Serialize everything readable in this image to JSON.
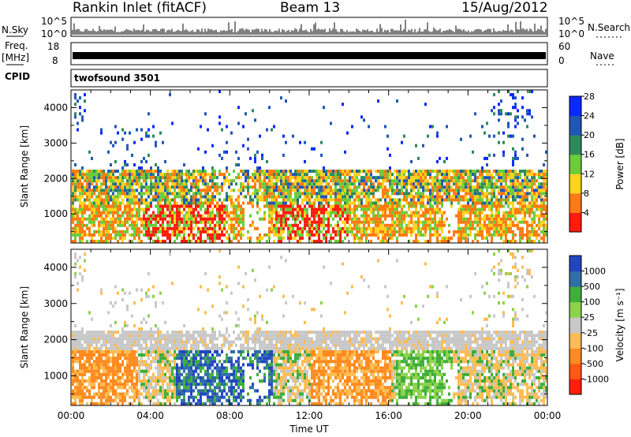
{
  "header": {
    "station": "Rankin Inlet (fitACF)",
    "beam": "Beam 13",
    "date": "15/Aug/2012"
  },
  "status_panels": {
    "nsky": {
      "label": "N.Sky",
      "ticks": [
        "10^5",
        "10^0"
      ],
      "right_label": "N.Search",
      "right_ticks": [
        "10^5",
        "10^0"
      ]
    },
    "freq": {
      "label_lines": [
        "Freq.",
        "[MHz]"
      ],
      "ticks": [
        "18",
        "8"
      ],
      "right_label": "Nave",
      "right_ticks": [
        "60",
        "0"
      ]
    },
    "cpid": {
      "label": "CPID",
      "value": "twofsound 3501"
    }
  },
  "chart_data": [
    {
      "type": "heatmap",
      "panel": "power",
      "ylabel": "Slant Range [km]",
      "ylim": [
        180,
        4500
      ],
      "yticks": [
        1000,
        2000,
        3000,
        4000
      ],
      "xlabel": "Time UT",
      "xticks": [
        "00:00",
        "04:00",
        "08:00",
        "12:00",
        "16:00",
        "20:00",
        "00:00"
      ],
      "colorbar": {
        "label": "Power [dB]",
        "ticks": [
          "4",
          "8",
          "12",
          "16",
          "20",
          "24",
          "28"
        ],
        "colors": [
          "#0a2aff",
          "#1f57b8",
          "#2e8a5c",
          "#6ccc3a",
          "#ffd21e",
          "#ff7a10",
          "#ff1c0c"
        ]
      }
    },
    {
      "type": "heatmap",
      "panel": "velocity",
      "ylabel": "Slant Range [km]",
      "ylim": [
        180,
        4500
      ],
      "yticks": [
        1000,
        2000,
        3000,
        4000
      ],
      "xlabel": "Time UT",
      "xticks": [
        "00:00",
        "04:00",
        "08:00",
        "12:00",
        "16:00",
        "20:00",
        "00:00"
      ],
      "colorbar": {
        "label": "Velocity [m s⁻¹]",
        "ticks": [
          "1000",
          "500",
          "100",
          "25",
          "-25",
          "-100",
          "-500",
          "-1000"
        ],
        "colors": [
          "#2345c2",
          "#2f6ea8",
          "#3fae3a",
          "#8ed24c",
          "#c8c8c8",
          "#ffbc52",
          "#ff8a1e",
          "#ff5a10",
          "#ff1f0a"
        ]
      }
    }
  ]
}
